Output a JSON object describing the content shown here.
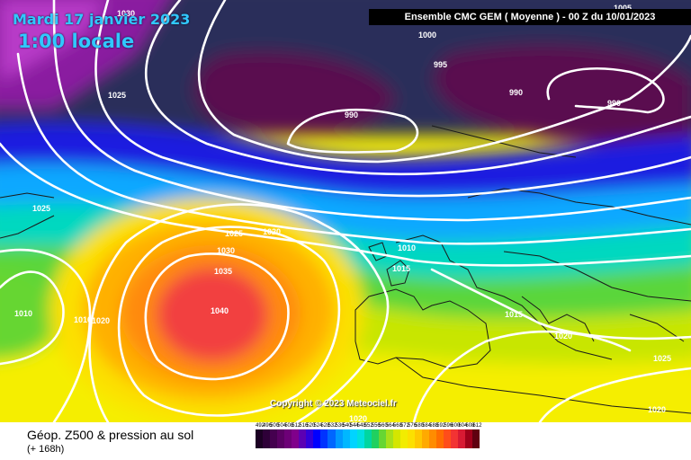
{
  "overlay": {
    "date": "Mardi 17 janvier 2023",
    "time": "1:00 locale"
  },
  "header": "Ensemble CMC GEM  ( Moyenne )  -  00 Z du 10/01/2023",
  "copyright": "Copyright © 2023 Meteociel.fr",
  "footer": {
    "title": "Géop. Z500 & pression au sol",
    "subtitle": "(+ 168h)"
  },
  "isobar_labels": [
    "1000",
    "995",
    "990",
    "990",
    "990",
    "1005",
    "1030",
    "1025",
    "1025",
    "1025",
    "1020",
    "1030",
    "1035",
    "1040",
    "1010",
    "1015",
    "1015",
    "1010",
    "1020",
    "1010",
    "1015",
    "1020",
    "1025",
    "1020",
    "1020"
  ],
  "legend": {
    "labels": [
      "492",
      "496",
      "500",
      "504",
      "508",
      "512",
      "516",
      "520",
      "524",
      "528",
      "532",
      "536",
      "540",
      "544",
      "548",
      "552",
      "556",
      "560",
      "564",
      "568",
      "572",
      "576",
      "580",
      "584",
      "588",
      "592",
      "596",
      "600",
      "604",
      "608",
      "612"
    ],
    "colors": [
      "#1b0023",
      "#2e0038",
      "#45004f",
      "#5a0063",
      "#6d0077",
      "#80008b",
      "#5c00b3",
      "#3300d9",
      "#0000ff",
      "#0033ff",
      "#0066ff",
      "#0099ff",
      "#00b7ff",
      "#00d4ff",
      "#00e0e0",
      "#00d6a0",
      "#20d060",
      "#66d633",
      "#a6e01a",
      "#d4e600",
      "#f2ec00",
      "#fce000",
      "#ffc800",
      "#ffaa00",
      "#ff8c00",
      "#ff6d00",
      "#ff4d1a",
      "#f23333",
      "#d81a33",
      "#a0001a",
      "#600010"
    ]
  }
}
